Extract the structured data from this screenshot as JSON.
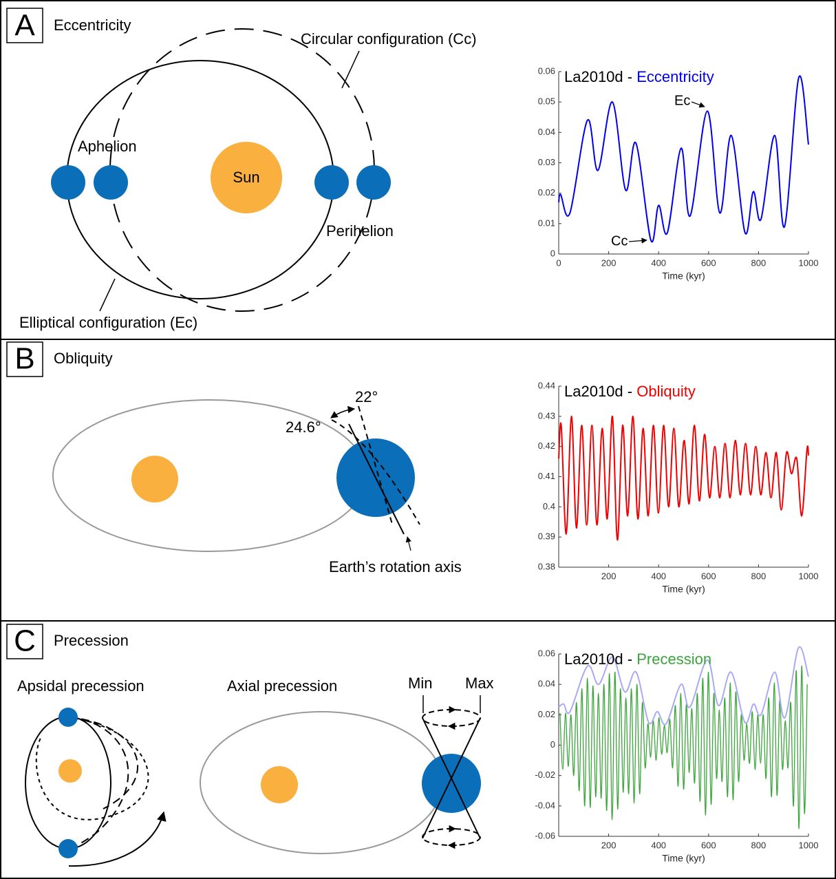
{
  "panels": [
    {
      "letter": "A",
      "title": "Eccentricity",
      "labels": [
        "Circular configuration (Cc)",
        "Aphelion",
        "Sun",
        "Perihelion",
        "Elliptical configuration (Ec)"
      ]
    },
    {
      "letter": "B",
      "title": "Obliquity",
      "labels": [
        "22°",
        "24.6°",
        "Earth’s rotation axis"
      ]
    },
    {
      "letter": "C",
      "title": "Precession",
      "labels": [
        "Apsidal precession",
        "Axial precession",
        "Min",
        "Max"
      ]
    }
  ],
  "chart_data": [
    {
      "type": "line",
      "title": "La2010d -",
      "xlabel": "Time (kyr)",
      "xlim": [
        0,
        1000
      ],
      "xticks": [
        0,
        200,
        400,
        600,
        800,
        1000
      ],
      "ylim": [
        0,
        0.06
      ],
      "yticks": [
        0,
        0.01,
        0.02,
        0.03,
        0.04,
        0.05,
        0.06
      ],
      "series": [
        {
          "name": "Eccentricity",
          "color": "#0000ee",
          "x": [
            0,
            8,
            45,
            115,
            157,
            215,
            268,
            309,
            369,
            400,
            435,
            490,
            526,
            595,
            645,
            691,
            746,
            779,
            810,
            865,
            904,
            961,
            1000
          ],
          "values": [
            0.017,
            0.0195,
            0.0135,
            0.044,
            0.0275,
            0.05,
            0.021,
            0.0365,
            0.0045,
            0.016,
            0.007,
            0.0348,
            0.0125,
            0.047,
            0.0135,
            0.039,
            0.007,
            0.0205,
            0.0115,
            0.039,
            0.009,
            0.058,
            0.036
          ]
        }
      ],
      "annotations": [
        "Ec",
        "Cc"
      ]
    },
    {
      "type": "line",
      "title": "La2010d -",
      "xlabel": "Time (kyr)",
      "xlim": [
        0,
        1000
      ],
      "xticks": [
        200,
        400,
        600,
        800,
        1000
      ],
      "ylim": [
        0.38,
        0.44
      ],
      "yticks": [
        0.38,
        0.39,
        0.4,
        0.41,
        0.42,
        0.43,
        0.44
      ],
      "series": [
        {
          "name": "Obliquity",
          "color": "#ee0000",
          "x": [
            0,
            10,
            30,
            51,
            71,
            92,
            112,
            133,
            153,
            174,
            194,
            215,
            235,
            256,
            276,
            297,
            317,
            338,
            358,
            379,
            399,
            420,
            440,
            461,
            481,
            502,
            522,
            543,
            563,
            584,
            604,
            625,
            645,
            666,
            686,
            707,
            727,
            748,
            768,
            789,
            809,
            830,
            850,
            871,
            891,
            912,
            932,
            953,
            973,
            994,
            1000
          ],
          "values": [
            0.416,
            0.427,
            0.391,
            0.43,
            0.393,
            0.427,
            0.394,
            0.427,
            0.394,
            0.426,
            0.396,
            0.43,
            0.389,
            0.427,
            0.397,
            0.43,
            0.396,
            0.426,
            0.397,
            0.427,
            0.398,
            0.427,
            0.4,
            0.426,
            0.4,
            0.422,
            0.401,
            0.427,
            0.402,
            0.424,
            0.403,
            0.42,
            0.403,
            0.421,
            0.403,
            0.422,
            0.404,
            0.421,
            0.404,
            0.42,
            0.404,
            0.418,
            0.403,
            0.418,
            0.399,
            0.418,
            0.411,
            0.416,
            0.397,
            0.419,
            0.417
          ]
        }
      ]
    },
    {
      "type": "line",
      "title": "La2010d -",
      "xlabel": "Time (kyr)",
      "xlim": [
        0,
        1000
      ],
      "xticks": [
        200,
        400,
        600,
        800,
        1000
      ],
      "ylim": [
        -0.06,
        0.06
      ],
      "yticks": [
        -0.06,
        -0.04,
        -0.02,
        0,
        0.02,
        0.04,
        0.06
      ],
      "series": [
        {
          "name": "Precession",
          "color": "#3aa53a",
          "x": [
            5,
            16,
            27,
            38,
            49,
            60,
            71,
            82,
            93,
            104,
            115,
            126,
            137,
            148,
            159,
            170,
            181,
            192,
            203,
            214,
            225,
            236,
            247,
            258,
            269,
            280,
            291,
            302,
            313,
            324,
            335,
            346,
            357,
            368,
            379,
            390,
            401,
            412,
            423,
            434,
            445,
            456,
            467,
            478,
            489,
            500,
            511,
            522,
            533,
            544,
            555,
            566,
            577,
            588,
            599,
            610,
            621,
            632,
            643,
            654,
            665,
            676,
            687,
            698,
            709,
            720,
            731,
            742,
            753,
            764,
            775,
            786,
            797,
            808,
            819,
            830,
            841,
            852,
            863,
            874,
            885,
            896,
            907,
            918,
            929,
            940,
            951,
            962,
            973,
            984,
            995
          ],
          "values": [
            0.021,
            -0.016,
            0.021,
            -0.014,
            0.02,
            -0.02,
            0.028,
            -0.03,
            0.037,
            -0.04,
            0.044,
            -0.041,
            0.039,
            -0.034,
            0.034,
            -0.035,
            0.04,
            -0.043,
            0.047,
            -0.049,
            0.048,
            -0.042,
            0.037,
            -0.031,
            0.031,
            -0.032,
            0.037,
            -0.038,
            0.04,
            -0.032,
            0.028,
            -0.015,
            0.014,
            -0.008,
            0.016,
            -0.01,
            0.018,
            -0.006,
            0.013,
            -0.005,
            0.017,
            -0.015,
            0.026,
            -0.027,
            0.034,
            -0.029,
            0.027,
            -0.018,
            0.024,
            -0.025,
            0.034,
            -0.037,
            0.044,
            -0.046,
            0.048,
            -0.039,
            0.034,
            -0.022,
            0.023,
            -0.024,
            0.031,
            -0.034,
            0.041,
            -0.036,
            0.035,
            -0.024,
            0.02,
            -0.01,
            0.014,
            -0.012,
            0.022,
            -0.016,
            0.02,
            -0.012,
            0.02,
            -0.022,
            0.031,
            -0.034,
            0.041,
            -0.033,
            0.03,
            -0.016,
            0.016,
            -0.015,
            0.028,
            -0.04,
            0.049,
            -0.055,
            0.052,
            -0.045,
            0.04
          ]
        },
        {
          "color": "#a9a9f5",
          "x": [
            0,
            20,
            45,
            115,
            160,
            215,
            265,
            310,
            360,
            395,
            430,
            490,
            525,
            595,
            640,
            690,
            745,
            780,
            810,
            865,
            905,
            960,
            1000
          ],
          "values": [
            0.025,
            0.027,
            0.022,
            0.052,
            0.04,
            0.058,
            0.035,
            0.048,
            0.015,
            0.022,
            0.014,
            0.04,
            0.025,
            0.056,
            0.026,
            0.048,
            0.015,
            0.027,
            0.02,
            0.048,
            0.018,
            0.064,
            0.045
          ]
        }
      ]
    }
  ]
}
